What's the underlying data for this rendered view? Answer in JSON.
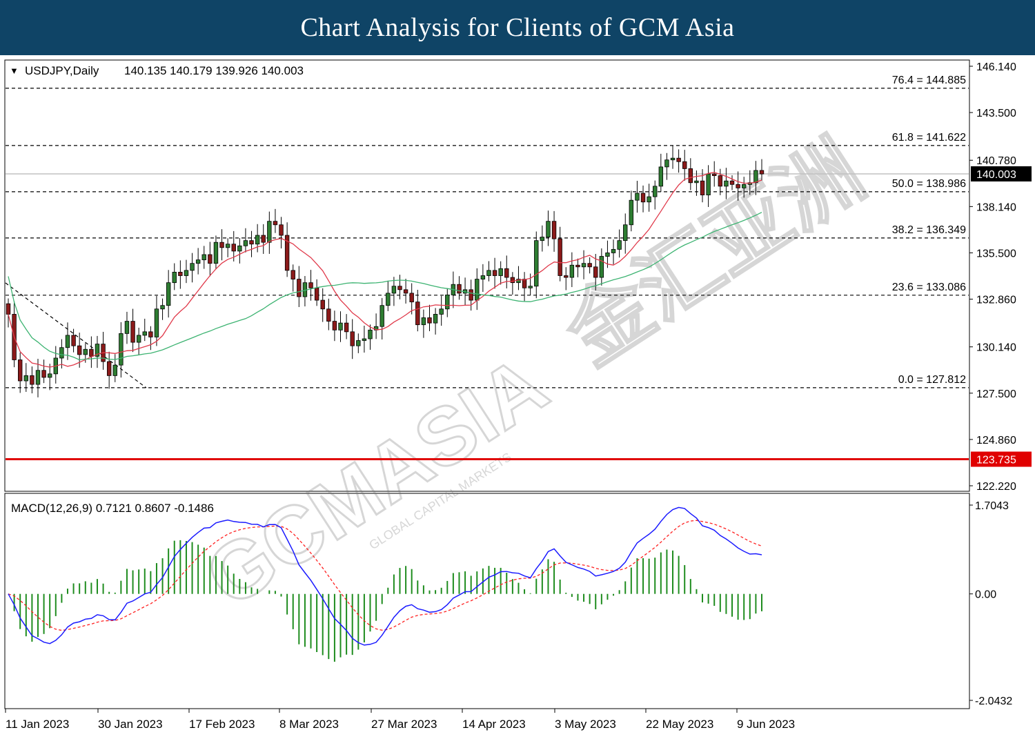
{
  "header": {
    "title": "Chart Analysis for Clients of GCM Asia"
  },
  "watermark": {
    "brand": "GCMASIA",
    "chinese": "金汇亚洲",
    "sub": "GLOBAL CAPITAL MARKETS"
  },
  "chart_data": [
    {
      "type": "candlestick",
      "title": "USDJPY,Daily",
      "ohlc_label": "140.135 140.179 139.926 140.003",
      "ylim": [
        122.22,
        146.14
      ],
      "y_ticks": [
        "146.140",
        "143.500",
        "140.780",
        "138.140",
        "135.500",
        "132.860",
        "130.140",
        "127.500",
        "124.860",
        "122.220"
      ],
      "current_price": {
        "value": 140.003,
        "label": "140.003"
      },
      "support_line": {
        "value": 123.735,
        "label": "123.735",
        "color": "#e00000"
      },
      "fib_levels": [
        {
          "value": 144.885,
          "label": "76.4 = 144.885"
        },
        {
          "value": 141.622,
          "label": "61.8 = 141.622"
        },
        {
          "value": 138.986,
          "label": "50.0 = 138.986"
        },
        {
          "value": 136.349,
          "label": "38.2 = 136.349"
        },
        {
          "value": 133.086,
          "label": "23.6 = 133.086"
        },
        {
          "value": 127.812,
          "label": "0.0 = 127.812"
        }
      ],
      "x_labels": [
        "11 Jan 2023",
        "30 Jan 2023",
        "17 Feb 2023",
        "8 Mar 2023",
        "27 Mar 2023",
        "14 Apr 2023",
        "3 May 2023",
        "22 May 2023",
        "9 Jun 2023"
      ],
      "closes": [
        132.0,
        129.4,
        128.2,
        128.5,
        128.0,
        128.8,
        128.4,
        128.6,
        129.5,
        130.1,
        130.8,
        130.2,
        129.7,
        130.0,
        129.6,
        130.3,
        129.3,
        128.5,
        129.1,
        130.9,
        131.6,
        130.4,
        130.8,
        131.0,
        130.7,
        132.3,
        132.5,
        133.8,
        134.4,
        134.2,
        134.5,
        134.9,
        135.1,
        135.4,
        134.9,
        136.1,
        135.8,
        136.0,
        135.6,
        135.9,
        136.2,
        136.0,
        136.5,
        136.1,
        137.3,
        137.1,
        136.5,
        134.5,
        134.0,
        133.0,
        133.8,
        133.5,
        132.8,
        132.3,
        131.6,
        131.1,
        131.5,
        131.0,
        130.2,
        130.5,
        130.6,
        131.1,
        131.3,
        132.5,
        133.2,
        133.6,
        133.4,
        133.2,
        132.7,
        131.4,
        131.8,
        131.5,
        132.0,
        132.3,
        133.1,
        133.7,
        133.2,
        133.4,
        132.8,
        134.0,
        134.2,
        134.5,
        134.2,
        134.6,
        134.1,
        133.8,
        134.0,
        133.5,
        133.6,
        136.2,
        136.4,
        137.3,
        136.3,
        134.2,
        134.1,
        134.8,
        134.7,
        134.9,
        134.7,
        134.1,
        135.3,
        135.5,
        135.7,
        136.2,
        137.1,
        138.5,
        138.9,
        138.4,
        138.7,
        139.3,
        140.4,
        140.8,
        140.9,
        140.7,
        140.3,
        139.5,
        139.6,
        138.8,
        140.0,
        139.9,
        139.3,
        139.6,
        139.4,
        139.2,
        139.4,
        139.5,
        140.2,
        140.0
      ],
      "ma_red": {
        "color": "#e0394a"
      },
      "ma_green": {
        "color": "#3cb371"
      },
      "candle_colors": {
        "up": "#2e7d32",
        "down": "#8b1a1a"
      }
    },
    {
      "type": "macd",
      "title": "MACD(12,26,9) 0.7121 0.8607 -0.1486",
      "ylim": [
        -2.0432,
        1.7043
      ],
      "y_ticks": [
        "1.7043",
        "0.00",
        "-2.0432"
      ],
      "colors": {
        "macd": "#1a1aff",
        "signal": "#ff2020",
        "histogram": "#1e8c1e"
      }
    }
  ]
}
